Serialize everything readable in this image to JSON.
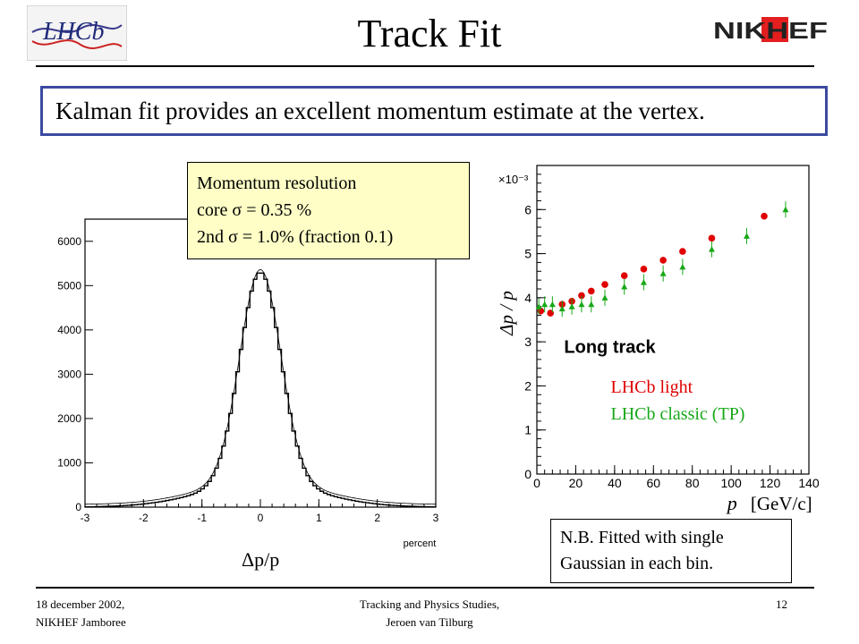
{
  "slide": {
    "title": "Track Fit",
    "headline": "Kalman fit provides an excellent momentum estimate at the vertex.",
    "logo_left_text": "LHCb",
    "logo_right_text": "NIKHEF",
    "resolution_box": [
      "Momentum resolution",
      "core σ = 0.35 %",
      "2nd σ = 1.0% (fraction 0.1)"
    ],
    "nb_box": [
      "N.B. Fitted with single",
      "Gaussian in each bin."
    ],
    "footer": {
      "left": [
        "18 december 2002,",
        "NIKHEF Jamboree"
      ],
      "center": [
        "Tracking and Physics Studies,",
        "Jeroen van Tilburg"
      ],
      "page": "12"
    }
  },
  "chart_data": [
    {
      "type": "histogram",
      "title": "",
      "xlabel": "Δp/p",
      "x_unit_label": "percent",
      "xlim": [
        -3,
        3
      ],
      "ylim": [
        0,
        6500
      ],
      "xticks": [
        "-3",
        "-2",
        "-1",
        "0",
        "1",
        "2",
        "3"
      ],
      "yticks": [
        "0",
        "1000",
        "2000",
        "3000",
        "4000",
        "5000",
        "6000"
      ],
      "fit": {
        "core_sigma": 0.35,
        "second_sigma": 1.0,
        "fraction": 0.1,
        "peak": 5300
      },
      "colors": {
        "line": "#000000"
      }
    },
    {
      "type": "scatter",
      "title": "",
      "ylabel": "Δp / p",
      "xlabel": "p",
      "x_unit_label": "[GeV/c]",
      "y_multiplier": "×10⁻³",
      "xlim": [
        0,
        140
      ],
      "ylim": [
        0,
        7
      ],
      "xticks": [
        "0",
        "20",
        "40",
        "60",
        "80",
        "100",
        "120",
        "140"
      ],
      "yticks": [
        "0",
        "1",
        "2",
        "3",
        "4",
        "5",
        "6"
      ],
      "annotation": "Long track",
      "series": [
        {
          "name": "LHCb light",
          "color": "#e00000",
          "marker": "circle",
          "x": [
            2,
            7,
            13,
            18,
            23,
            28,
            35,
            45,
            55,
            65,
            75,
            90,
            117
          ],
          "y": [
            3.7,
            3.65,
            3.85,
            3.92,
            4.05,
            4.15,
            4.3,
            4.5,
            4.65,
            4.85,
            5.05,
            5.35,
            5.85
          ]
        },
        {
          "name": "LHCb classic (TP)",
          "color": "#18a818",
          "marker": "triangle",
          "x": [
            1,
            4,
            8,
            13,
            18,
            23,
            28,
            35,
            45,
            55,
            65,
            75,
            90,
            108,
            128
          ],
          "y": [
            3.8,
            3.85,
            3.85,
            3.75,
            3.8,
            3.85,
            3.85,
            4.0,
            4.25,
            4.35,
            4.55,
            4.7,
            5.1,
            5.4,
            6.0
          ]
        }
      ]
    }
  ]
}
